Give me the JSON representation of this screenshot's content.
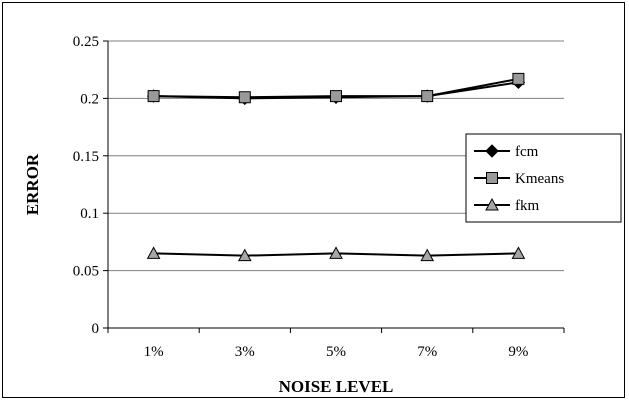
{
  "chart_data": {
    "type": "line",
    "title": "",
    "xlabel": "NOISE LEVEL",
    "ylabel": "ERROR",
    "categories": [
      "1%",
      "3%",
      "5%",
      "7%",
      "9%"
    ],
    "ylim": [
      0,
      0.25
    ],
    "yticks": [
      0,
      0.05,
      0.1,
      0.15,
      0.2,
      0.25
    ],
    "ytick_labels": [
      "0",
      "0.05",
      "0.1",
      "0.15",
      "0.2",
      "0.25"
    ],
    "grid": "horizontal",
    "legend_position": "right",
    "series": [
      {
        "name": "fcm",
        "values": [
          0.202,
          0.2,
          0.201,
          0.202,
          0.214
        ],
        "marker": "diamond",
        "color": "#000000",
        "marker_fill": "#000000"
      },
      {
        "name": "Kmeans",
        "values": [
          0.202,
          0.201,
          0.202,
          0.202,
          0.217
        ],
        "marker": "square",
        "color": "#000000",
        "marker_fill": "#999999"
      },
      {
        "name": "fkm",
        "values": [
          0.065,
          0.063,
          0.065,
          0.063,
          0.065
        ],
        "marker": "triangle",
        "color": "#000000",
        "marker_fill": "#a6a6a6"
      }
    ]
  }
}
